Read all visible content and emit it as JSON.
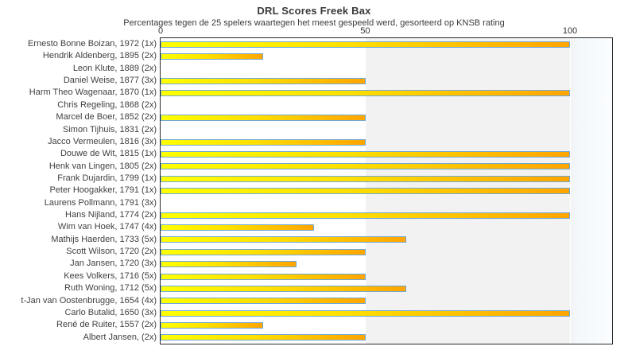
{
  "header": {
    "title": "DRL Scores Freek Bax",
    "subtitle": "Percentages tegen de 25 spelers waartegen het meest gespeeld werd, gesorteerd op KNSB rating"
  },
  "colors": {
    "bar_gradient_start": "#ffff00",
    "bar_gradient_end": "#ffa500",
    "bar_border": "#6fa8d8",
    "plot_band_gray": "#f2f2f2",
    "plot_band_white": "#ffffff",
    "plot_border": "#2a2a2a",
    "text": "#3b3b3b"
  },
  "chart_data": {
    "type": "bar",
    "orientation": "horizontal",
    "title": "DRL Scores Freek Bax",
    "subtitle": "Percentages tegen de 25 spelers waartegen het meest gespeeld werd, gesorteerd op KNSB rating",
    "xlabel": "",
    "ylabel": "",
    "xlim": [
      0,
      100
    ],
    "xticks": [
      0,
      50,
      100
    ],
    "xtick_labels": [
      "0",
      "50",
      "100"
    ],
    "axis_position": "top",
    "grid": "white vertical gridlines at 50 and 100 over gray band",
    "legend": null,
    "categories": [
      "Ernesto Bonne Boizan, 1972 (1x)",
      "Hendrik Aldenberg, 1895 (2x)",
      "Leon Klute, 1889 (2x)",
      "Daniel Weise, 1877 (3x)",
      "Harm Theo Wagenaar, 1870 (1x)",
      "Chris Regeling, 1868 (2x)",
      "Marcel de Boer, 1852 (2x)",
      "Simon Tijhuis, 1831 (2x)",
      "Jacco Vermeulen, 1816 (3x)",
      "Douwe de Wit, 1815 (1x)",
      "Henk van Lingen, 1805 (2x)",
      "Frank Dujardin, 1799 (1x)",
      "Peter Hoogakker, 1791 (1x)",
      "Laurens Pollmann, 1791 (3x)",
      "Hans Nijland, 1774 (2x)",
      "Wim van Hoek, 1747 (4x)",
      "Mathijs Haerden, 1733 (5x)",
      "Scott Wilson, 1720 (2x)",
      "Jan Jansen, 1720 (3x)",
      "Kees Volkers, 1716 (5x)",
      "Ruth Woning, 1712 (5x)",
      "t-Jan van Oostenbrugge, 1654 (4x)",
      "Carlo Butalid, 1650 (3x)",
      "René de Ruiter, 1557 (2x)",
      "Albert Jansen,  (2x)"
    ],
    "values": [
      100,
      25,
      0,
      50,
      100,
      0,
      50,
      0,
      50,
      100,
      100,
      100,
      100,
      0,
      100,
      37.5,
      60,
      50,
      33.3,
      50,
      60,
      50,
      100,
      25,
      50
    ]
  }
}
